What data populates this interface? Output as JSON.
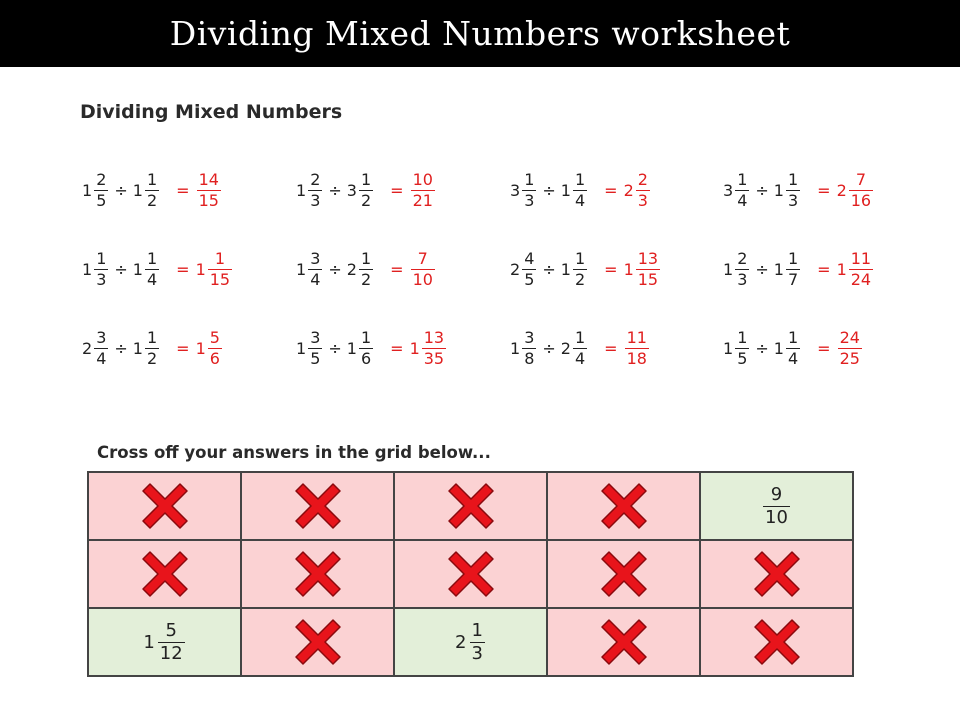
{
  "title": "Dividing Mixed Numbers worksheet",
  "section_heading": "Dividing Mixed Numbers",
  "problems": [
    {
      "a": {
        "w": "1",
        "n": "2",
        "d": "5"
      },
      "b": {
        "w": "1",
        "n": "1",
        "d": "2"
      },
      "ans": {
        "w": "",
        "n": "14",
        "d": "15"
      }
    },
    {
      "a": {
        "w": "1",
        "n": "2",
        "d": "3"
      },
      "b": {
        "w": "3",
        "n": "1",
        "d": "2"
      },
      "ans": {
        "w": "",
        "n": "10",
        "d": "21"
      }
    },
    {
      "a": {
        "w": "3",
        "n": "1",
        "d": "3"
      },
      "b": {
        "w": "1",
        "n": "1",
        "d": "4"
      },
      "ans": {
        "w": "2",
        "n": "2",
        "d": "3"
      }
    },
    {
      "a": {
        "w": "3",
        "n": "1",
        "d": "4"
      },
      "b": {
        "w": "1",
        "n": "1",
        "d": "3"
      },
      "ans": {
        "w": "2",
        "n": "7",
        "d": "16"
      }
    },
    {
      "a": {
        "w": "1",
        "n": "1",
        "d": "3"
      },
      "b": {
        "w": "1",
        "n": "1",
        "d": "4"
      },
      "ans": {
        "w": "1",
        "n": "1",
        "d": "15"
      }
    },
    {
      "a": {
        "w": "1",
        "n": "3",
        "d": "4"
      },
      "b": {
        "w": "2",
        "n": "1",
        "d": "2"
      },
      "ans": {
        "w": "",
        "n": "7",
        "d": "10"
      }
    },
    {
      "a": {
        "w": "2",
        "n": "4",
        "d": "5"
      },
      "b": {
        "w": "1",
        "n": "1",
        "d": "2"
      },
      "ans": {
        "w": "1",
        "n": "13",
        "d": "15"
      }
    },
    {
      "a": {
        "w": "1",
        "n": "2",
        "d": "3"
      },
      "b": {
        "w": "1",
        "n": "1",
        "d": "7"
      },
      "ans": {
        "w": "1",
        "n": "11",
        "d": "24"
      }
    },
    {
      "a": {
        "w": "2",
        "n": "3",
        "d": "4"
      },
      "b": {
        "w": "1",
        "n": "1",
        "d": "2"
      },
      "ans": {
        "w": "1",
        "n": "5",
        "d": "6"
      }
    },
    {
      "a": {
        "w": "1",
        "n": "3",
        "d": "5"
      },
      "b": {
        "w": "1",
        "n": "1",
        "d": "6"
      },
      "ans": {
        "w": "1",
        "n": "13",
        "d": "35"
      }
    },
    {
      "a": {
        "w": "1",
        "n": "3",
        "d": "8"
      },
      "b": {
        "w": "2",
        "n": "1",
        "d": "4"
      },
      "ans": {
        "w": "",
        "n": "11",
        "d": "18"
      }
    },
    {
      "a": {
        "w": "1",
        "n": "1",
        "d": "5"
      },
      "b": {
        "w": "1",
        "n": "1",
        "d": "4"
      },
      "ans": {
        "w": "",
        "n": "24",
        "d": "25"
      }
    }
  ],
  "grid_heading": "Cross off your answers in the grid below...",
  "grid": [
    {
      "w": "",
      "n": "",
      "d": "",
      "status": "crossed"
    },
    {
      "w": "",
      "n": "",
      "d": "",
      "status": "crossed"
    },
    {
      "w": "",
      "n": "",
      "d": "",
      "status": "crossed"
    },
    {
      "w": "",
      "n": "",
      "d": "",
      "status": "crossed"
    },
    {
      "w": "",
      "n": "9",
      "d": "10",
      "status": "open"
    },
    {
      "w": "",
      "n": "",
      "d": "",
      "status": "crossed"
    },
    {
      "w": "",
      "n": "",
      "d": "",
      "status": "crossed"
    },
    {
      "w": "",
      "n": "",
      "d": "",
      "status": "crossed"
    },
    {
      "w": "",
      "n": "",
      "d": "",
      "status": "crossed"
    },
    {
      "w": "",
      "n": "",
      "d": "",
      "status": "crossed"
    },
    {
      "w": "1",
      "n": "5",
      "d": "12",
      "status": "open"
    },
    {
      "w": "",
      "n": "",
      "d": "",
      "status": "crossed"
    },
    {
      "w": "2",
      "n": "1",
      "d": "3",
      "status": "open"
    },
    {
      "w": "",
      "n": "",
      "d": "",
      "status": "crossed"
    },
    {
      "w": "",
      "n": "",
      "d": "",
      "status": "crossed"
    }
  ],
  "operators": {
    "divide": "÷",
    "equals": "="
  },
  "colors": {
    "answer": "#e02020",
    "crossed_cell": "#fbd2d3",
    "open_cell": "#e3efd9",
    "cross": "#e8141b"
  }
}
